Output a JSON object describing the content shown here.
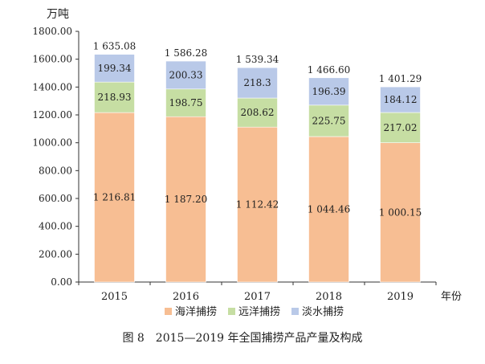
{
  "chart_data": {
    "type": "bar",
    "stacked": true,
    "caption": "图 8　2015—2019 年全国捕捞产品产量及构成",
    "unit": "万吨",
    "xlabel": "年份",
    "categories": [
      "2015",
      "2016",
      "2017",
      "2018",
      "2019"
    ],
    "ylim": [
      0,
      1800
    ],
    "yticks": [
      "0.00",
      "200.00",
      "400.00",
      "600.00",
      "800.00",
      "1000.00",
      "1200.00",
      "1400.00",
      "1600.00",
      "1800.00"
    ],
    "series": [
      {
        "name": "海洋捕捞",
        "color": "#F7BE93",
        "values": [
          1216.81,
          1187.2,
          1112.42,
          1044.46,
          1000.15
        ],
        "labels": [
          "1 216.81",
          "1 187.20",
          "1 112.42",
          "1 044.46",
          "1 000.15"
        ]
      },
      {
        "name": "远洋捕捞",
        "color": "#C6DEA3",
        "values": [
          218.93,
          198.75,
          208.62,
          225.75,
          217.02
        ],
        "labels": [
          "218.93",
          "198.75",
          "208.62",
          "225.75",
          "217.02"
        ]
      },
      {
        "name": "淡水捕捞",
        "color": "#B9C9E8",
        "values": [
          199.34,
          200.33,
          218.3,
          196.39,
          184.12
        ],
        "labels": [
          "199.34",
          "200.33",
          "218.3",
          "196.39",
          "184.12"
        ]
      }
    ],
    "totals": [
      1635.08,
      1586.28,
      1539.34,
      1466.6,
      1401.29
    ],
    "total_labels": [
      "1 635.08",
      "1 586.28",
      "1 539.34",
      "1 466.60",
      "1 401.29"
    ],
    "legend_position": "bottom",
    "grid": false
  }
}
